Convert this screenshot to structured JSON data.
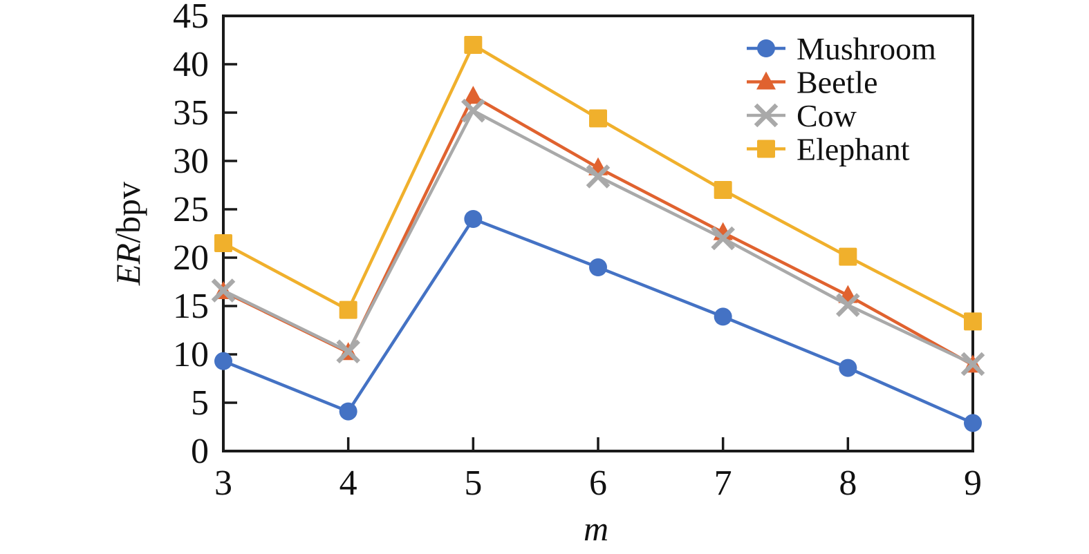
{
  "chart_data": {
    "type": "line",
    "title": "",
    "xlabel": "m",
    "ylabel": "ER/bpv",
    "ylabel_italic": "ER",
    "ylabel_rest": "/bpv",
    "x": [
      3,
      4,
      5,
      6,
      7,
      8,
      9
    ],
    "xlim": [
      3,
      9
    ],
    "ylim": [
      0,
      45
    ],
    "ytick_step": 5,
    "xtick_labels": [
      "3",
      "4",
      "5",
      "6",
      "7",
      "8",
      "9"
    ],
    "ytick_labels": [
      "0",
      "5",
      "10",
      "15",
      "20",
      "25",
      "30",
      "35",
      "40",
      "45"
    ],
    "grid": false,
    "legend_position": "top-right-inside",
    "axis_color": "#1a1a1a",
    "series": [
      {
        "name": "Mushroom",
        "marker": "circle",
        "color": "#4472C4",
        "values": [
          9.3,
          4.1,
          24.0,
          19.0,
          13.9,
          8.6,
          2.9
        ]
      },
      {
        "name": "Beetle",
        "marker": "triangle",
        "color": "#E0622F",
        "values": [
          16.5,
          10.2,
          36.7,
          29.3,
          22.6,
          16.1,
          8.9
        ]
      },
      {
        "name": "Cow",
        "marker": "x",
        "color": "#A9A9A9",
        "values": [
          16.6,
          10.3,
          35.2,
          28.4,
          22.0,
          15.1,
          9.0
        ]
      },
      {
        "name": "Elephant",
        "marker": "square",
        "color": "#F0B02C",
        "values": [
          21.5,
          14.6,
          42.0,
          34.4,
          27.0,
          20.1,
          13.4
        ]
      }
    ]
  }
}
